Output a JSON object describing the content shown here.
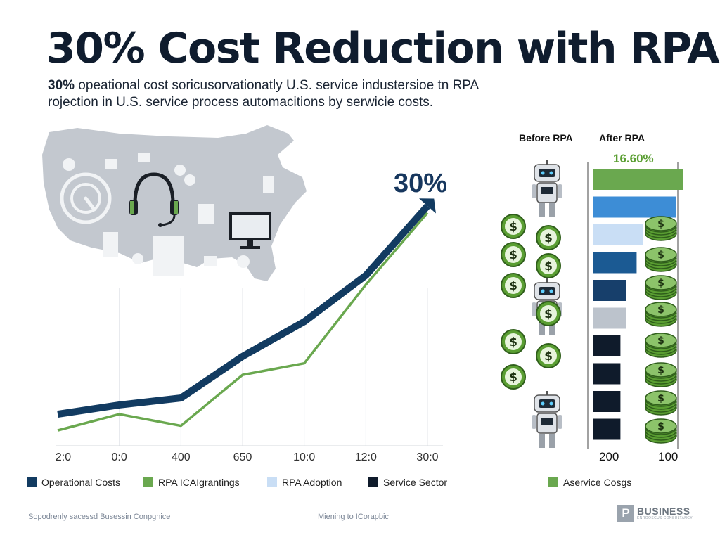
{
  "title": "30% Cost Reduction with RPA",
  "subtitle": {
    "bold": "30%",
    "line1": " opeational cost soricusorvationatly U.S. service industersioe tn RPA",
    "line2": "rojection in U.S. service process automacitions by serwicie costs."
  },
  "annotation": "30%",
  "colors": {
    "navy": "#123b61",
    "green": "#6aa84f",
    "light_blue": "#c9def5",
    "dark": "#0f1b2b",
    "map": "#c3c8cf"
  },
  "chart_data": [
    {
      "type": "line",
      "x": [
        "2:0",
        "0:0",
        "400",
        "650",
        "10:0",
        "12:0",
        "30:0"
      ],
      "series": [
        {
          "name": "Operational Costs",
          "values": [
            10,
            14,
            17,
            35,
            50,
            70,
            100
          ]
        },
        {
          "name": "RPA ICAIgrantings",
          "values": [
            3,
            10,
            5,
            27,
            32,
            66,
            97
          ]
        }
      ],
      "ylim": [
        0,
        110
      ]
    },
    {
      "type": "bar",
      "headers": [
        "Before RPA",
        "After RPA"
      ],
      "value_label": "16.60%",
      "values": [
        100,
        92,
        55,
        48,
        36,
        36,
        30,
        30,
        30,
        30
      ],
      "bar_colors": [
        "#6aa84f",
        "#3d8dd6",
        "#c9def5",
        "#1b5a93",
        "#173f6b",
        "#bcc3cc",
        "#0f1b2b",
        "#0f1b2b",
        "#0f1b2b",
        "#0f1b2b"
      ],
      "axis_labels": [
        "200",
        "100"
      ]
    }
  ],
  "legend": [
    {
      "label": "Operational Costs",
      "color": "#123b61"
    },
    {
      "label": "RPA ICAIgrantings",
      "color": "#6aa84f"
    },
    {
      "label": "RPA Adoption",
      "color": "#c9def5"
    },
    {
      "label": "Service Sector",
      "color": "#0f1b2b"
    },
    {
      "label": "Aservice Cosgs",
      "color": "#6aa84f"
    }
  ],
  "footer": {
    "left": "Sopodrenly sacessd Busessin Conpghice",
    "middle": "Miening to ICorapbic",
    "brand": "BUSINESS",
    "brand_sub": "ENROOSCUS CONSULTANCY",
    "brand_mark": "P"
  },
  "icons": [
    "us-map-icon",
    "headset-icon",
    "monitor-icon",
    "document-icon",
    "robot-icon",
    "dollar-coin-icon",
    "coin-stack-icon"
  ]
}
